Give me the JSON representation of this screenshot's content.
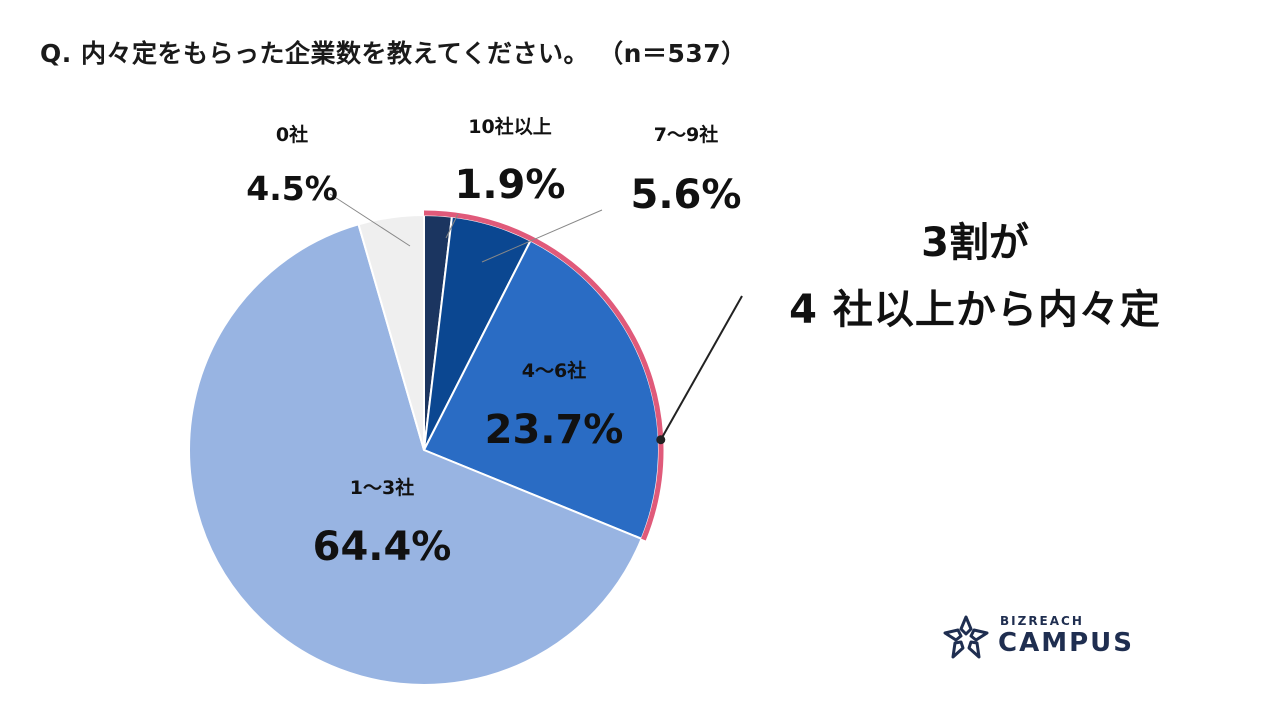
{
  "title": "Q. 内々定をもらった企業数を教えてください。 （n＝537）",
  "callout": {
    "line1": "3割が",
    "line2": "4 社以上から内々定"
  },
  "brand": {
    "sub": "BIZREACH",
    "main": "CAMPUS"
  },
  "colors": {
    "highlight": "#e05a7a",
    "leader": "#222222"
  },
  "chart_data": {
    "type": "pie",
    "title": "Q. 内々定をもらった企業数を教えてください。 （n＝537）",
    "slices": [
      {
        "label": "10社以上",
        "value": 1.9,
        "display": "1.9%",
        "color": "#1b3560"
      },
      {
        "label": "7〜9社",
        "value": 5.6,
        "display": "5.6%",
        "color": "#0b4791"
      },
      {
        "label": "4〜6社",
        "value": 23.7,
        "display": "23.7%",
        "color": "#2a6cc4"
      },
      {
        "label": "1〜3社",
        "value": 64.4,
        "display": "64.4%",
        "color": "#98b4e2"
      },
      {
        "label": "0社",
        "value": 4.5,
        "display": "4.5%",
        "color": "#efefef"
      }
    ],
    "highlight_note": "3割が 4 社以上から内々定"
  }
}
